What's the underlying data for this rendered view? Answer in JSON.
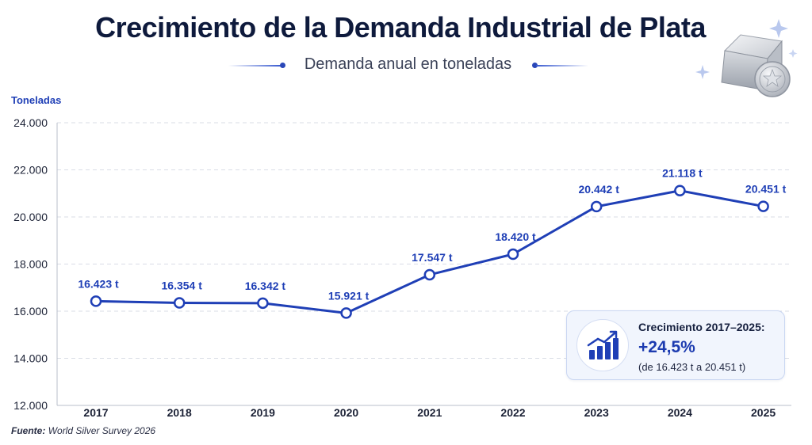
{
  "header": {
    "title": "Crecimiento de la Demanda Industrial de Plata",
    "subtitle": "Demanda anual en toneladas"
  },
  "chart_data": {
    "type": "line",
    "title": "Crecimiento de la Demanda Industrial de Plata",
    "subtitle": "Demanda anual en toneladas",
    "xlabel": "",
    "ylabel": "Toneladas",
    "categories": [
      "2017",
      "2018",
      "2019",
      "2020",
      "2021",
      "2022",
      "2023",
      "2024",
      "2025"
    ],
    "series": [
      {
        "values": [
          16423,
          16354,
          16342,
          15921,
          17547,
          18420,
          20442,
          21118,
          20451
        ]
      }
    ],
    "data_labels": [
      "16.423 t",
      "16.354 t",
      "16.342 t",
      "15.921 t",
      "17.547 t",
      "18.420 t",
      "20.442 t",
      "21.118 t",
      "20.451 t"
    ],
    "ylim": [
      12000,
      24000
    ],
    "yticks": [
      12000,
      14000,
      16000,
      18000,
      20000,
      22000,
      24000
    ],
    "ytick_labels": [
      "12.000",
      "14.000",
      "16.000",
      "18.000",
      "20.000",
      "22.000",
      "24.000"
    ],
    "grid": "horizontal dashed",
    "line_color": "#1f3fb6",
    "marker_fill": "#ffffff"
  },
  "callout": {
    "label": "Crecimiento 2017–2025:",
    "value": "+24,5%",
    "note": "(de 16.423 t a 20.451 t)",
    "icon": "bar-chart-growth-icon"
  },
  "emblem": {
    "icon": "silver-bar-and-coin-icon"
  },
  "source": {
    "prefix": "Fuente:",
    "text": "World Silver Survey 2026"
  },
  "colors": {
    "accent": "#1f3fb6",
    "title": "#0e1a3c",
    "grid": "#d9dde6"
  }
}
